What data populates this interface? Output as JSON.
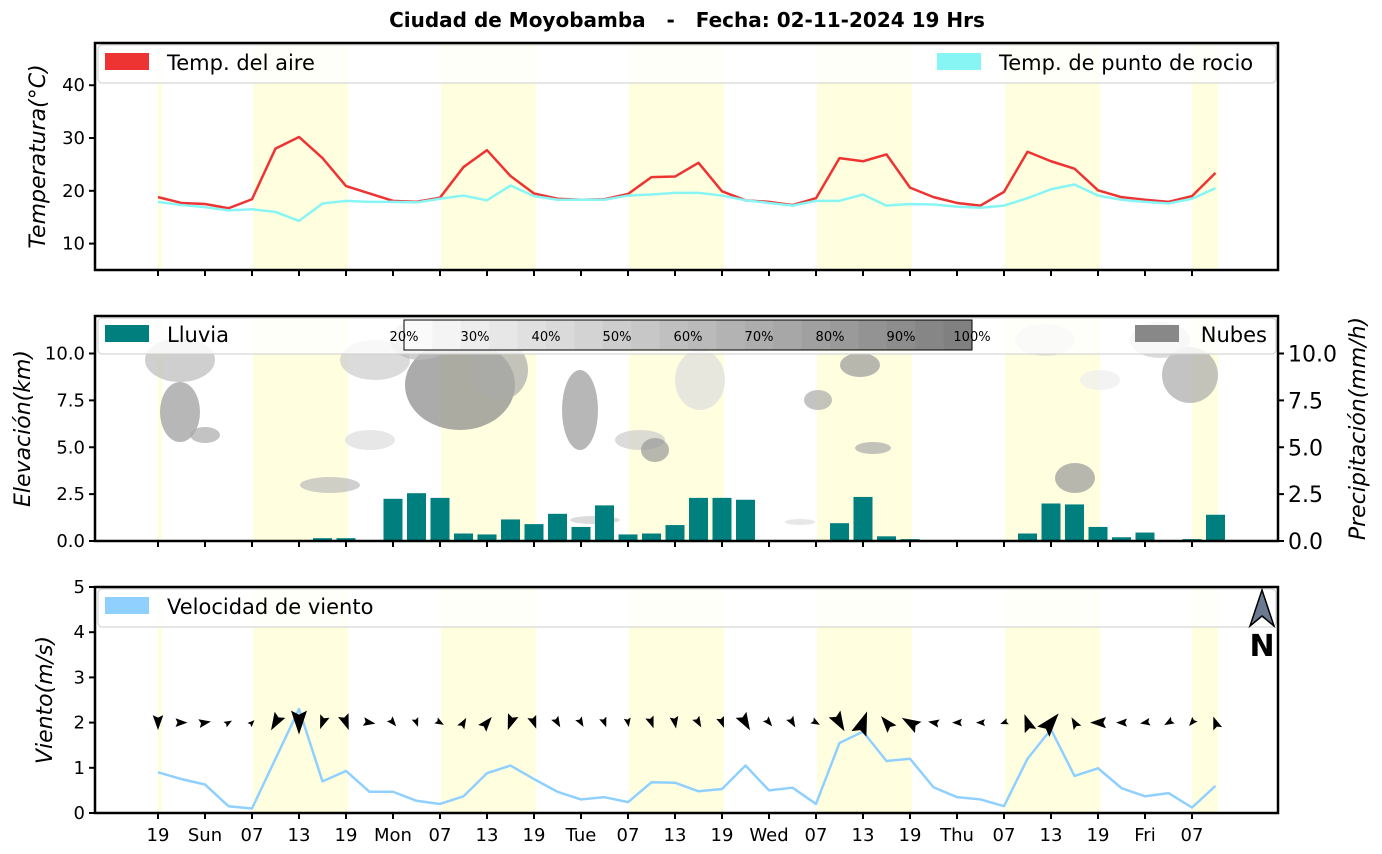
{
  "title": "Ciudad de Moyobamba   -   Fecha: 02-11-2024 19 Hrs",
  "colors": {
    "air": "#EE3333",
    "dew": "#88F5F5",
    "rain": "#007F7F",
    "wind": "#90D0FF",
    "daylight": "#FFFFE0",
    "cloud": "#888888"
  },
  "x_ticks": [
    "19",
    "Sun",
    "07",
    "13",
    "19",
    "Mon",
    "07",
    "13",
    "19",
    "Tue",
    "07",
    "13",
    "19",
    "Wed",
    "07",
    "13",
    "19",
    "Thu",
    "07",
    "13",
    "19",
    "Fri",
    "07"
  ],
  "chart_data": [
    {
      "type": "line",
      "ylabel": "Temperatura(°C)",
      "ylim": [
        5,
        48
      ],
      "yticks": [
        10,
        20,
        30,
        40
      ],
      "legend": [
        "Temp. del aire",
        "Temp. de punto de rocio"
      ],
      "series": [
        {
          "name": "Temp. del aire",
          "values": [
            18.8,
            17.7,
            17.5,
            16.7,
            18.4,
            28.0,
            30.2,
            26.2,
            20.9,
            19.5,
            18.1,
            17.9,
            18.7,
            24.5,
            27.7,
            22.8,
            19.5,
            18.5,
            18.3,
            18.4,
            19.4,
            22.6,
            22.7,
            25.3,
            19.9,
            18.2,
            17.9,
            17.3,
            18.6,
            26.2,
            25.6,
            26.9,
            20.6,
            18.8,
            17.7,
            17.2,
            19.8,
            27.4,
            25.6,
            24.2,
            20.1,
            18.8,
            18.3,
            17.9,
            19.0,
            23.4
          ]
        },
        {
          "name": "Temp. de punto de rocio",
          "values": [
            17.9,
            17.3,
            16.9,
            16.3,
            16.5,
            16.0,
            14.3,
            17.6,
            18.1,
            17.9,
            17.9,
            17.8,
            18.5,
            19.1,
            18.2,
            21.0,
            19.0,
            18.3,
            18.3,
            18.3,
            19.1,
            19.3,
            19.6,
            19.6,
            19.1,
            18.2,
            17.7,
            17.2,
            18.1,
            18.1,
            19.3,
            17.2,
            17.5,
            17.4,
            17.0,
            16.8,
            17.2,
            18.6,
            20.3,
            21.2,
            19.1,
            18.3,
            17.9,
            17.6,
            18.5,
            20.5
          ]
        }
      ]
    },
    {
      "type": "bar",
      "ylabel": "Elevación(km)",
      "ylabel_right": "Precipitación(mm/h)",
      "ylim": [
        0,
        12
      ],
      "yticks": [
        0.0,
        2.5,
        5.0,
        7.5,
        10.0
      ],
      "yticks_labels": [
        "0.0",
        "2.5",
        "5.0",
        "7.5",
        "10.0"
      ],
      "legend": [
        "Lluvia",
        "Nubes"
      ],
      "colorbar_labels": [
        "20%",
        "30%",
        "40%",
        "50%",
        "60%",
        "70%",
        "80%",
        "90%",
        "100%"
      ],
      "values": [
        0,
        0,
        0,
        0,
        0,
        0,
        0.05,
        0.15,
        0.15,
        0.05,
        2.25,
        2.55,
        2.3,
        0.4,
        0.35,
        1.15,
        0.9,
        1.45,
        0.75,
        1.9,
        0.35,
        0.4,
        0.85,
        2.3,
        2.3,
        2.2,
        0,
        0,
        0.05,
        0.95,
        2.35,
        0.25,
        0.1,
        0,
        0,
        0,
        0,
        0.4,
        2.0,
        1.95,
        0.75,
        0.2,
        0.45,
        0,
        0.1,
        1.4
      ]
    },
    {
      "type": "line",
      "ylabel": "Viento(m/s)",
      "ylim": [
        0,
        5
      ],
      "yticks": [
        0,
        1,
        2,
        3,
        4,
        5
      ],
      "legend": [
        "Velocidad de viento"
      ],
      "north_label": "N",
      "values": [
        0.9,
        0.75,
        0.63,
        0.15,
        0.1,
        1.2,
        2.3,
        0.7,
        0.93,
        0.47,
        0.47,
        0.27,
        0.2,
        0.37,
        0.88,
        1.05,
        0.75,
        0.47,
        0.3,
        0.35,
        0.24,
        0.68,
        0.67,
        0.48,
        0.53,
        1.05,
        0.5,
        0.56,
        0.2,
        1.55,
        1.8,
        1.15,
        1.2,
        0.57,
        0.35,
        0.3,
        0.15,
        1.2,
        1.85,
        0.82,
        0.99,
        0.55,
        0.37,
        0.44,
        0.12,
        0.6
      ],
      "arrow_angles": [
        180,
        90,
        80,
        60,
        45,
        210,
        180,
        200,
        160,
        100,
        140,
        160,
        120,
        30,
        40,
        200,
        160,
        150,
        150,
        160,
        170,
        160,
        170,
        150,
        160,
        150,
        140,
        150,
        120,
        150,
        20,
        320,
        300,
        280,
        270,
        270,
        250,
        340,
        40,
        330,
        270,
        270,
        260,
        240,
        220,
        340
      ],
      "arrow_lengths": [
        0.55,
        0.4,
        0.4,
        0.2,
        0.15,
        0.7,
        1,
        0.5,
        0.6,
        0.4,
        0.3,
        0.25,
        0.25,
        0.35,
        0.55,
        0.6,
        0.45,
        0.35,
        0.3,
        0.3,
        0.25,
        0.4,
        0.4,
        0.35,
        0.35,
        0.7,
        0.3,
        0.35,
        0.25,
        0.8,
        1,
        0.65,
        0.75,
        0.35,
        0.3,
        0.25,
        0.2,
        0.7,
        1,
        0.4,
        0.6,
        0.35,
        0.3,
        0.3,
        0.25,
        0.45
      ]
    }
  ]
}
